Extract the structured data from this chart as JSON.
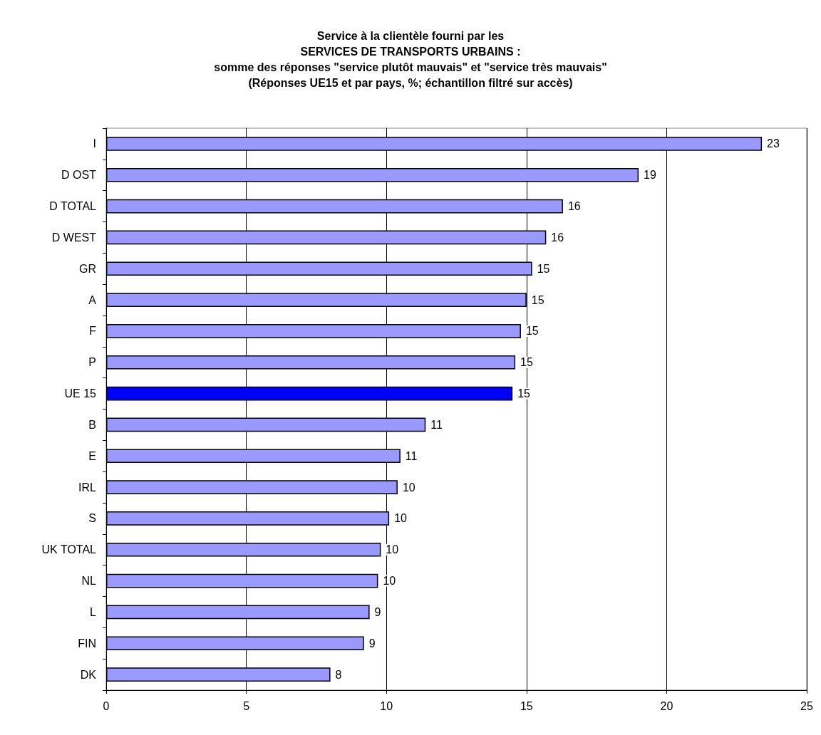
{
  "chart_data": {
    "type": "bar",
    "orientation": "horizontal",
    "title": "Service à la clientèle fourni par les\nSERVICES DE TRANSPORTS URBAINS :\nsomme des réponses \"service plutôt mauvais\" et \"service très mauvais\"\n(Réponses UE15 et par pays, %; échantillon filtré sur accès)",
    "categories": [
      "I",
      "D OST",
      "D TOTAL",
      "D WEST",
      "GR",
      "A",
      "F",
      "P",
      "UE 15",
      "B",
      "E",
      "IRL",
      "S",
      "UK TOTAL",
      "NL",
      "L",
      "FIN",
      "DK"
    ],
    "values": [
      23.4,
      19.0,
      16.3,
      15.7,
      15.2,
      15.0,
      14.8,
      14.6,
      14.5,
      11.4,
      10.5,
      10.4,
      10.1,
      9.8,
      9.7,
      9.4,
      9.2,
      8.0
    ],
    "value_labels": [
      "23",
      "19",
      "16",
      "16",
      "15",
      "15",
      "15",
      "15",
      "15",
      "11",
      "11",
      "10",
      "10",
      "10",
      "10",
      "9",
      "9",
      "8"
    ],
    "colors": [
      "#9999ff",
      "#9999ff",
      "#9999ff",
      "#9999ff",
      "#9999ff",
      "#9999ff",
      "#9999ff",
      "#9999ff",
      "#0000ff",
      "#9999ff",
      "#9999ff",
      "#9999ff",
      "#9999ff",
      "#9999ff",
      "#9999ff",
      "#9999ff",
      "#9999ff",
      "#9999ff"
    ],
    "xlim": [
      0,
      25
    ],
    "xticks": [
      0,
      5,
      10,
      15,
      20,
      25
    ],
    "grid": "x"
  }
}
